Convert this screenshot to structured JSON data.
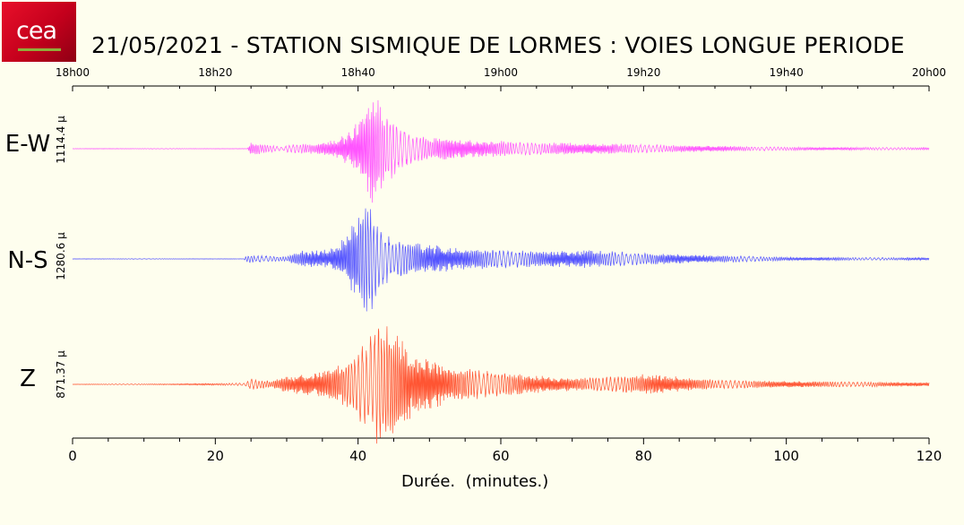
{
  "logo": {
    "text": "cea",
    "small_text": ""
  },
  "chart_data": {
    "type": "line",
    "title": "21/05/2021  -  STATION SISMIQUE DE LORMES : VOIES LONGUE PERIODE",
    "xlabel": "Durée.  (minutes.)",
    "xlim": [
      0,
      120
    ],
    "x_ticks": [
      "0",
      "20",
      "40",
      "60",
      "80",
      "100",
      "120"
    ],
    "top_axis_ticks": [
      "18h00",
      "18h20",
      "18h40",
      "19h00",
      "19h20",
      "19h40",
      "20h00"
    ],
    "grid": false,
    "series": [
      {
        "name": "E-W",
        "amplitude_label": "1114.4 µ",
        "color": "#ff55ff",
        "envelope": [
          [
            0,
            0.004
          ],
          [
            24.5,
            0.004
          ],
          [
            25,
            0.11
          ],
          [
            27,
            0.08
          ],
          [
            29.5,
            0.03
          ],
          [
            30,
            0.07
          ],
          [
            34,
            0.09
          ],
          [
            37,
            0.16
          ],
          [
            40,
            0.45
          ],
          [
            42,
            1.0
          ],
          [
            44,
            0.62
          ],
          [
            46,
            0.35
          ],
          [
            49,
            0.22
          ],
          [
            55,
            0.16
          ],
          [
            65,
            0.11
          ],
          [
            75,
            0.09
          ],
          [
            85,
            0.06
          ],
          [
            100,
            0.03
          ],
          [
            120,
            0.02
          ]
        ]
      },
      {
        "name": "N-S",
        "amplitude_label": "1280.6 µ",
        "color": "#5555ff",
        "envelope": [
          [
            0,
            0.004
          ],
          [
            24,
            0.004
          ],
          [
            24.5,
            0.07
          ],
          [
            27,
            0.05
          ],
          [
            30,
            0.04
          ],
          [
            32,
            0.14
          ],
          [
            36,
            0.16
          ],
          [
            38,
            0.35
          ],
          [
            40.5,
            0.85
          ],
          [
            41.5,
            1.0
          ],
          [
            43,
            0.55
          ],
          [
            45,
            0.35
          ],
          [
            49,
            0.25
          ],
          [
            55,
            0.18
          ],
          [
            65,
            0.13
          ],
          [
            72,
            0.15
          ],
          [
            80,
            0.1
          ],
          [
            90,
            0.06
          ],
          [
            100,
            0.03
          ],
          [
            120,
            0.02
          ]
        ]
      },
      {
        "name": "Z",
        "amplitude_label": "871.37 µ",
        "color": "#ff5533",
        "envelope": [
          [
            0,
            0.004
          ],
          [
            15,
            0.008
          ],
          [
            24,
            0.02
          ],
          [
            25,
            0.09
          ],
          [
            28,
            0.05
          ],
          [
            30,
            0.14
          ],
          [
            34,
            0.18
          ],
          [
            38,
            0.32
          ],
          [
            40,
            0.55
          ],
          [
            42,
            0.85
          ],
          [
            43,
            1.0
          ],
          [
            45,
            0.85
          ],
          [
            47,
            0.55
          ],
          [
            50,
            0.38
          ],
          [
            55,
            0.25
          ],
          [
            62,
            0.16
          ],
          [
            70,
            0.1
          ],
          [
            75,
            0.12
          ],
          [
            80,
            0.16
          ],
          [
            85,
            0.12
          ],
          [
            90,
            0.07
          ],
          [
            100,
            0.05
          ],
          [
            120,
            0.03
          ]
        ]
      }
    ]
  }
}
